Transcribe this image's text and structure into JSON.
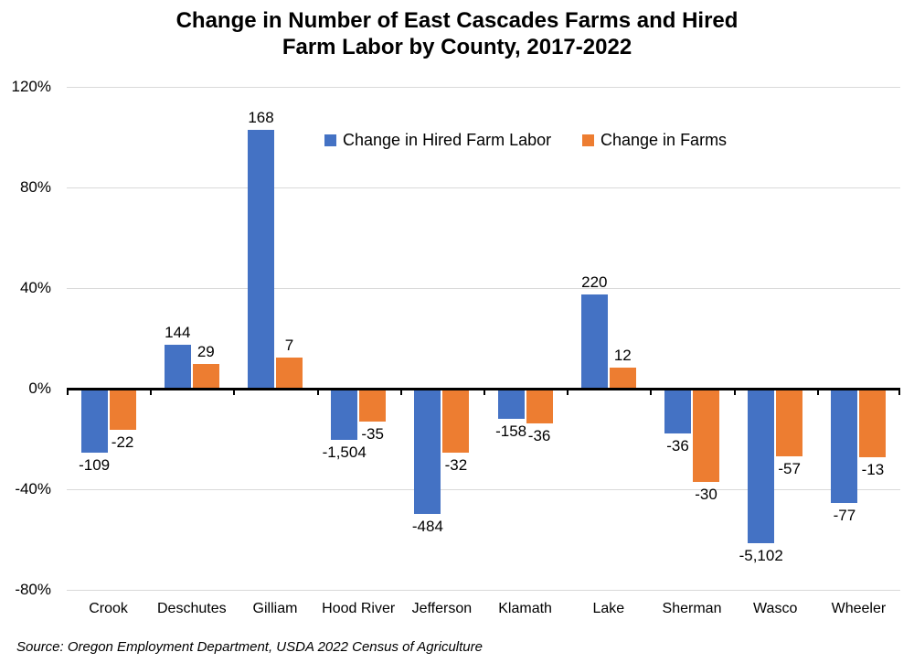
{
  "title": {
    "line1": "Change in Number of East Cascades Farms and Hired",
    "line2": "Farm Labor by County, 2017-2022"
  },
  "source": "Source: Oregon Employment Department, USDA 2022 Census of Agriculture",
  "legend": [
    {
      "label": "Change in Hired Farm Labor",
      "color": "#4472C4"
    },
    {
      "label": "Change in Farms",
      "color": "#ED7D31"
    }
  ],
  "chart_data": {
    "type": "bar",
    "title": "Change in Number of East Cascades Farms and Hired Farm Labor by County, 2017-2022",
    "categories": [
      "Crook",
      "Deschutes",
      "Gilliam",
      "Hood River",
      "Jefferson",
      "Klamath",
      "Lake",
      "Sherman",
      "Wasco",
      "Wheeler"
    ],
    "series": [
      {
        "name": "Change in Hired Farm Labor",
        "color": "#4472C4",
        "pct_change": [
          -25.5,
          17.5,
          103,
          -20.4,
          -49.8,
          -12,
          37.5,
          -17.8,
          -61.6,
          -45.5
        ],
        "data_labels": [
          "-109",
          "144",
          "168",
          "-1,504",
          "-484",
          "-158",
          "220",
          "-36",
          "-5,102",
          "-77"
        ]
      },
      {
        "name": "Change in Farms",
        "color": "#ED7D31",
        "pct_change": [
          -16.4,
          9.8,
          12.4,
          -13.1,
          -25.5,
          -13.8,
          8.4,
          -37.1,
          -26.9,
          -27.1
        ],
        "data_labels": [
          "-22",
          "29",
          "7",
          "-35",
          "-32",
          "-36",
          "12",
          "-30",
          "-57",
          "-13"
        ]
      }
    ],
    "y_axis": {
      "min": -80,
      "max": 120,
      "ticks": [
        {
          "value": 120,
          "label": "120%"
        },
        {
          "value": 80,
          "label": "80%"
        },
        {
          "value": 40,
          "label": "40%"
        },
        {
          "value": 0,
          "label": "0%"
        },
        {
          "value": -40,
          "label": "-40%"
        },
        {
          "value": -80,
          "label": "-80%"
        }
      ]
    },
    "grid": true,
    "legend_position": "inside-top",
    "value_semantics": "bar heights show percent change; data labels show absolute change"
  }
}
